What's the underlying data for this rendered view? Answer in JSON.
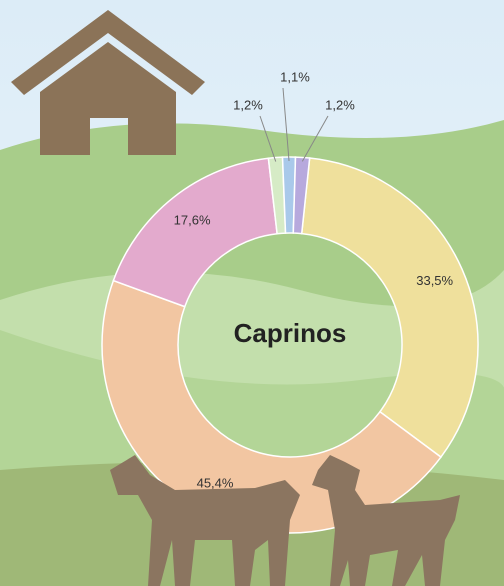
{
  "chart_data": {
    "type": "donut",
    "title": "Caprinos",
    "values": [
      33.5,
      45.4,
      17.6,
      1.2,
      1.1,
      1.2
    ],
    "value_labels": [
      "33,5%",
      "45,4%",
      "17,6%",
      "1,2%",
      "1,1%",
      "1,2%"
    ],
    "colors": [
      "#efe09c",
      "#f2c6a2",
      "#e3aacd",
      "#d6ebc6",
      "#a9c9ea",
      "#b7a9dd"
    ]
  }
}
